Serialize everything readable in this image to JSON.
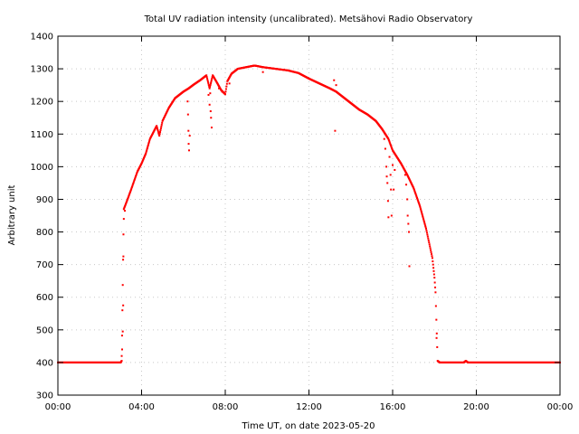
{
  "chart_data": {
    "type": "scatter",
    "title": "Total UV radiation intensity (uncalibrated). Metsähovi Radio Observatory",
    "xlabel": "Time UT, on date 2023-05-20",
    "ylabel": "Arbitrary unit",
    "xlim_hours": [
      0,
      24
    ],
    "ylim": [
      300,
      1400
    ],
    "grid": true,
    "legend": "none",
    "series_color": "#ff0000",
    "xticks": [
      {
        "hour": 0,
        "label": "00:00"
      },
      {
        "hour": 4,
        "label": "04:00"
      },
      {
        "hour": 8,
        "label": "08:00"
      },
      {
        "hour": 12,
        "label": "12:00"
      },
      {
        "hour": 16,
        "label": "16:00"
      },
      {
        "hour": 20,
        "label": "20:00"
      },
      {
        "hour": 24,
        "label": "00:00"
      }
    ],
    "yticks": [
      300,
      400,
      500,
      600,
      700,
      800,
      900,
      1000,
      1100,
      1200,
      1300,
      1400
    ],
    "curve_hours_values": [
      [
        0,
        400
      ],
      [
        3.0,
        400
      ],
      [
        3.05,
        405
      ],
      [
        3.15,
        870
      ],
      [
        3.3,
        895
      ],
      [
        3.5,
        930
      ],
      [
        3.8,
        985
      ],
      [
        4.0,
        1010
      ],
      [
        4.2,
        1040
      ],
      [
        4.4,
        1085
      ],
      [
        4.6,
        1110
      ],
      [
        4.72,
        1125
      ],
      [
        4.85,
        1095
      ],
      [
        5.0,
        1140
      ],
      [
        5.3,
        1180
      ],
      [
        5.6,
        1210
      ],
      [
        6.0,
        1230
      ],
      [
        6.25,
        1240
      ],
      [
        6.5,
        1252
      ],
      [
        6.8,
        1265
      ],
      [
        7.1,
        1280
      ],
      [
        7.25,
        1240
      ],
      [
        7.4,
        1280
      ],
      [
        7.6,
        1258
      ],
      [
        7.8,
        1235
      ],
      [
        8.0,
        1222
      ],
      [
        8.1,
        1262
      ],
      [
        8.3,
        1285
      ],
      [
        8.6,
        1300
      ],
      [
        9.0,
        1305
      ],
      [
        9.4,
        1310
      ],
      [
        9.8,
        1305
      ],
      [
        10.4,
        1300
      ],
      [
        11.0,
        1295
      ],
      [
        11.5,
        1287
      ],
      [
        12.0,
        1270
      ],
      [
        12.5,
        1255
      ],
      [
        13.0,
        1240
      ],
      [
        13.3,
        1230
      ],
      [
        13.6,
        1215
      ],
      [
        14.0,
        1195
      ],
      [
        14.4,
        1175
      ],
      [
        14.8,
        1160
      ],
      [
        15.2,
        1140
      ],
      [
        15.5,
        1115
      ],
      [
        15.8,
        1085
      ],
      [
        16.0,
        1050
      ],
      [
        16.4,
        1010
      ],
      [
        16.7,
        975
      ],
      [
        17.0,
        935
      ],
      [
        17.3,
        880
      ],
      [
        17.6,
        810
      ],
      [
        17.9,
        720
      ],
      [
        18.0,
        660
      ],
      [
        18.05,
        615
      ],
      [
        18.15,
        405
      ],
      [
        18.25,
        400
      ],
      [
        19.4,
        400
      ],
      [
        19.5,
        405
      ],
      [
        19.6,
        400
      ],
      [
        24,
        400
      ]
    ],
    "outliers_hours_values": [
      [
        3.05,
        420
      ],
      [
        3.07,
        440
      ],
      [
        3.1,
        495
      ],
      [
        3.12,
        575
      ],
      [
        3.13,
        725
      ],
      [
        3.15,
        840
      ],
      [
        3.2,
        865
      ],
      [
        6.2,
        1200
      ],
      [
        6.22,
        1160
      ],
      [
        6.24,
        1110
      ],
      [
        6.25,
        1070
      ],
      [
        6.27,
        1050
      ],
      [
        6.3,
        1095
      ],
      [
        7.2,
        1220
      ],
      [
        7.25,
        1190
      ],
      [
        7.3,
        1170
      ],
      [
        7.32,
        1150
      ],
      [
        7.35,
        1120
      ],
      [
        7.28,
        1225
      ],
      [
        7.7,
        1240
      ],
      [
        7.85,
        1230
      ],
      [
        8.2,
        1255
      ],
      [
        9.8,
        1290
      ],
      [
        13.2,
        1265
      ],
      [
        13.25,
        1110
      ],
      [
        13.3,
        1250
      ],
      [
        15.6,
        1085
      ],
      [
        15.65,
        1055
      ],
      [
        15.7,
        1000
      ],
      [
        15.72,
        970
      ],
      [
        15.75,
        950
      ],
      [
        15.78,
        895
      ],
      [
        15.8,
        845
      ],
      [
        15.85,
        1030
      ],
      [
        15.9,
        975
      ],
      [
        15.92,
        930
      ],
      [
        15.95,
        850
      ],
      [
        16.0,
        1005
      ],
      [
        16.05,
        930
      ],
      [
        16.1,
        990
      ],
      [
        16.6,
        975
      ],
      [
        16.65,
        945
      ],
      [
        16.7,
        900
      ],
      [
        16.72,
        850
      ],
      [
        16.75,
        825
      ],
      [
        16.78,
        800
      ],
      [
        16.8,
        695
      ],
      [
        18.1,
        475
      ]
    ]
  }
}
